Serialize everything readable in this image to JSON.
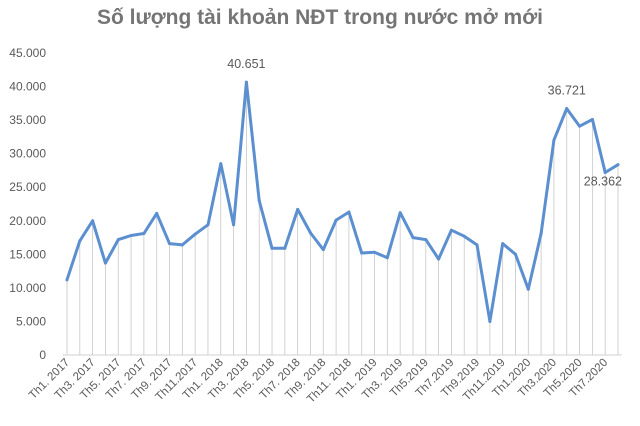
{
  "chart_data": {
    "type": "area",
    "title": "Số lượng tài khoản NĐT trong nước mở mới",
    "xlabel": "",
    "ylabel": "",
    "ylim": [
      0,
      45000
    ],
    "yticks": [
      "0",
      "5.000",
      "10.000",
      "15.000",
      "20.000",
      "25.000",
      "30.000",
      "35.000",
      "40.000",
      "45.000"
    ],
    "grid": false,
    "legend": "none",
    "colors": {
      "line": "#5b8fd0",
      "fill_lines": "#c7c7c7",
      "text": "#595959",
      "title": "#757575"
    },
    "categories": [
      "Th1. 2017",
      "Th2. 2017",
      "Th3. 2017",
      "Th4. 2017",
      "Th5. 2017",
      "Th6. 2017",
      "Th7. 2017",
      "Th8. 2017",
      "Th9. 2017",
      "Th10. 2017",
      "Th11.2017",
      "Th12. 2017",
      "Th1. 2018",
      "Th2. 2018",
      "Th3. 2018",
      "Th4. 2018",
      "Th5. 2018",
      "Th6. 2018",
      "Th7. 2018",
      "Th8. 2018",
      "Th9. 2018",
      "Th10. 2018",
      "Th11. 2018",
      "Th12. 2018",
      "Th1. 2019",
      "Th2. 2019",
      "Th3. 2019",
      "Th4. 2019",
      "Th5.2019",
      "Th6.2019",
      "Th7.2019",
      "Th8.2019",
      "Th9.2019",
      "Th10.2019",
      "Th11.2019",
      "Th12.2019",
      "Th1.2020",
      "Th2.2020",
      "Th3.2020",
      "Th4.2020",
      "Th5.2020",
      "Th6.2020",
      "Th7.2020",
      "Th8.2020"
    ],
    "visible_tick_labels": [
      "Th1. 2017",
      "Th3. 2017",
      "Th5. 2017",
      "Th7. 2017",
      "Th9. 2017",
      "Th11.2017",
      "Th1. 2018",
      "Th3. 2018",
      "Th5. 2018",
      "Th7. 2018",
      "Th9. 2018",
      "Th11. 2018",
      "Th1. 2019",
      "Th3. 2019",
      "Th5.2019",
      "Th7.2019",
      "Th9.2019",
      "Th11.2019",
      "Th1.2020",
      "Th3.2020",
      "Th5.2020",
      "Th7.2020"
    ],
    "values": [
      11200,
      17000,
      20000,
      13700,
      17200,
      17800,
      18100,
      21100,
      16600,
      16400,
      18000,
      19400,
      28500,
      19400,
      40651,
      23000,
      15900,
      15900,
      21700,
      18200,
      15700,
      20100,
      21300,
      15200,
      15300,
      14500,
      21200,
      17500,
      17200,
      14300,
      18600,
      17700,
      16400,
      5000,
      16600,
      15000,
      9800,
      18100,
      32000,
      36721,
      34100,
      35100,
      27200,
      28362
    ],
    "data_labels": [
      {
        "index": 14,
        "text": "40.651"
      },
      {
        "index": 39,
        "text": "36.721"
      },
      {
        "index": 43,
        "text": "28.362"
      }
    ]
  }
}
